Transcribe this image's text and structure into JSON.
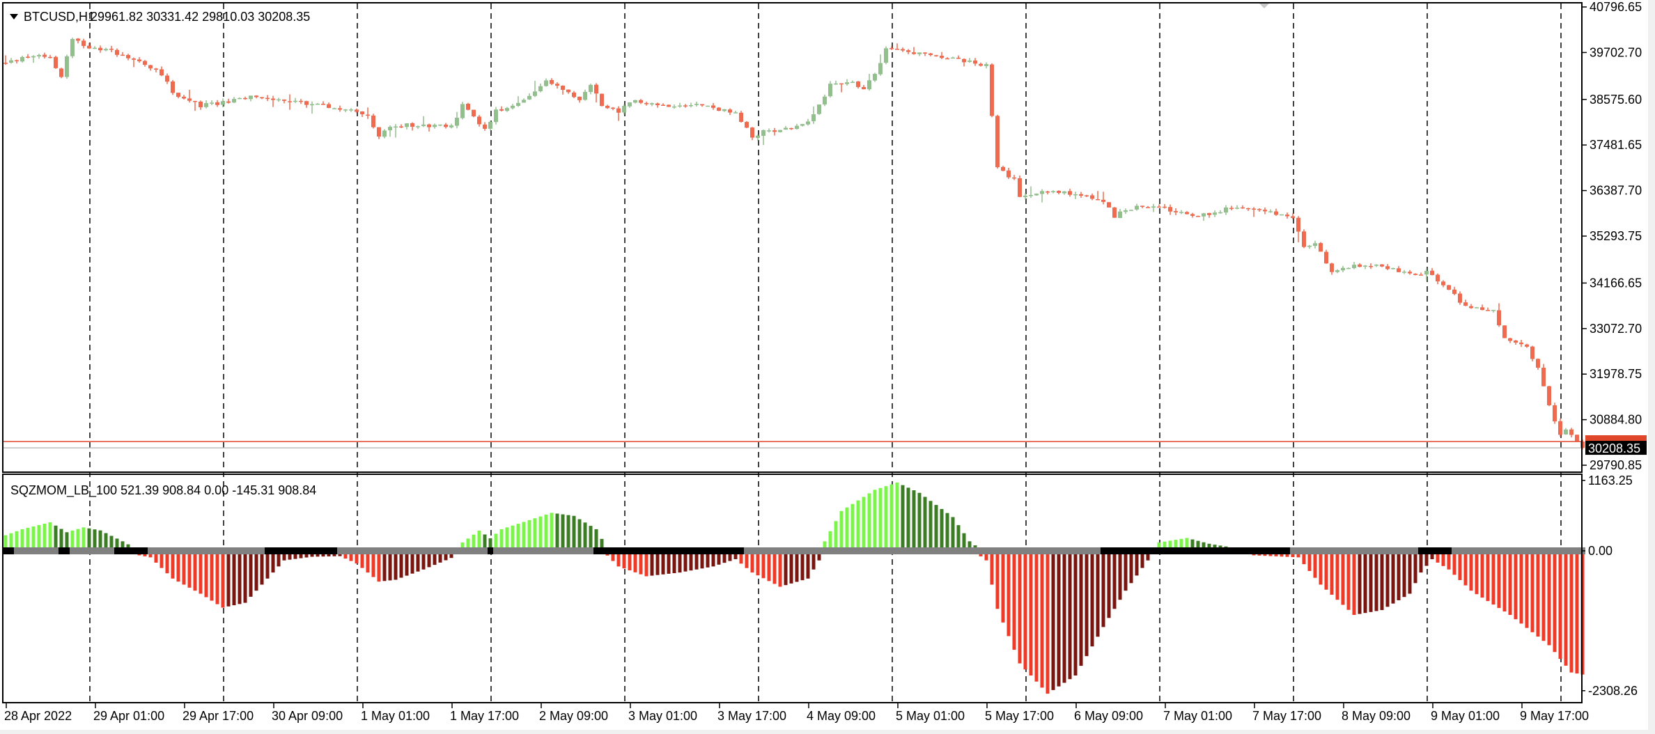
{
  "header": {
    "symbol": "BTCUSD,H1",
    "ohlc": "29961.82 30331.42 29810.03 30208.35"
  },
  "indicator": {
    "label": "SQZMOM_LB_100 521.39 908.84 0.00 -145.31 908.84"
  },
  "price_axis": {
    "labels": [
      "40796.65",
      "39702.70",
      "38575.60",
      "37481.65",
      "36387.70",
      "35293.75",
      "34166.65",
      "33072.70",
      "31978.75",
      "30884.80",
      "29790.85"
    ],
    "current_price": "30208.35",
    "ask_price_level": 30360
  },
  "indicator_axis": {
    "labels": [
      "1163.25",
      "0.00",
      "-2308.26"
    ],
    "values": [
      1163.25,
      0,
      -2308.26
    ]
  },
  "time_axis": {
    "labels": [
      "28 Apr 2022",
      "29 Apr 01:00",
      "29 Apr 17:00",
      "30 Apr 09:00",
      "1 May 01:00",
      "1 May 17:00",
      "2 May 09:00",
      "3 May 01:00",
      "3 May 17:00",
      "4 May 09:00",
      "5 May 01:00",
      "5 May 17:00",
      "6 May 09:00",
      "7 May 01:00",
      "7 May 17:00",
      "8 May 09:00",
      "9 May 01:00",
      "9 May 17:00"
    ]
  },
  "colors": {
    "bull": "#93bf8e",
    "bear": "#ef6a4f",
    "mom_up_pos": "#7cf54a",
    "mom_down_pos": "#3a7d22",
    "mom_down_neg": "#ef3a28",
    "mom_up_neg": "#7a140e",
    "squeeze_on": "#000000",
    "squeeze_off": "#808080",
    "ask_line": "#e0462a",
    "bid_line": "#bdbdbd"
  },
  "chart_data": {
    "type": "candlestick",
    "timeframe": "H1",
    "close_path": [
      [
        0,
        39440
      ],
      [
        5,
        39645
      ],
      [
        8,
        39570
      ],
      [
        10,
        39100
      ],
      [
        12,
        40070
      ],
      [
        15,
        39820
      ],
      [
        19,
        39740
      ],
      [
        25,
        39440
      ],
      [
        28,
        39190
      ],
      [
        30,
        38730
      ],
      [
        35,
        38430
      ],
      [
        38,
        38480
      ],
      [
        44,
        38630
      ],
      [
        49,
        38580
      ],
      [
        57,
        38430
      ],
      [
        63,
        38300
      ],
      [
        65,
        38220
      ],
      [
        67,
        37670
      ],
      [
        69,
        37920
      ],
      [
        72,
        37970
      ],
      [
        80,
        37920
      ],
      [
        82,
        38430
      ],
      [
        84,
        38170
      ],
      [
        86,
        37840
      ],
      [
        88,
        38300
      ],
      [
        93,
        38550
      ],
      [
        97,
        38990
      ],
      [
        100,
        38810
      ],
      [
        103,
        38555
      ],
      [
        105,
        38935
      ],
      [
        107,
        38430
      ],
      [
        110,
        38300
      ],
      [
        113,
        38555
      ],
      [
        118,
        38430
      ],
      [
        123,
        38480
      ],
      [
        127,
        38380
      ],
      [
        131,
        38225
      ],
      [
        134,
        37670
      ],
      [
        136,
        37800
      ],
      [
        142,
        37920
      ],
      [
        145,
        38175
      ],
      [
        148,
        38935
      ],
      [
        152,
        38990
      ],
      [
        154,
        38810
      ],
      [
        157,
        39440
      ],
      [
        158,
        39820
      ],
      [
        160,
        39745
      ],
      [
        165,
        39645
      ],
      [
        171,
        39520
      ],
      [
        176,
        39390
      ],
      [
        177,
        38175
      ],
      [
        178,
        36906
      ],
      [
        181,
        36650
      ],
      [
        182,
        36270
      ],
      [
        185,
        36350
      ],
      [
        190,
        36350
      ],
      [
        193,
        36270
      ],
      [
        197,
        36145
      ],
      [
        199,
        35765
      ],
      [
        201,
        35945
      ],
      [
        205,
        36020
      ],
      [
        208,
        35945
      ],
      [
        214,
        35765
      ],
      [
        220,
        35970
      ],
      [
        226,
        35895
      ],
      [
        231,
        35765
      ],
      [
        233,
        35005
      ],
      [
        235,
        35130
      ],
      [
        238,
        34420
      ],
      [
        241,
        34550
      ],
      [
        246,
        34625
      ],
      [
        250,
        34445
      ],
      [
        253,
        34320
      ],
      [
        255,
        34445
      ],
      [
        258,
        34115
      ],
      [
        262,
        33610
      ],
      [
        267,
        33480
      ],
      [
        269,
        32850
      ],
      [
        273,
        32595
      ],
      [
        275,
        32090
      ],
      [
        277,
        31205
      ],
      [
        279,
        30565
      ],
      [
        280,
        30690
      ],
      [
        282,
        30315
      ],
      [
        283,
        30208.35
      ]
    ],
    "momentum_path": [
      [
        0,
        200
      ],
      [
        3,
        300
      ],
      [
        8,
        414
      ],
      [
        11,
        250
      ],
      [
        14,
        330
      ],
      [
        17,
        280
      ],
      [
        21,
        100
      ],
      [
        23,
        0
      ],
      [
        26,
        -50
      ],
      [
        30,
        -400
      ],
      [
        35,
        -650
      ],
      [
        39,
        -880
      ],
      [
        43,
        -800
      ],
      [
        47,
        -400
      ],
      [
        50,
        -100
      ],
      [
        55,
        -40
      ],
      [
        60,
        -30
      ],
      [
        63,
        -150
      ],
      [
        67,
        -450
      ],
      [
        70,
        -420
      ],
      [
        75,
        -250
      ],
      [
        80,
        -60
      ],
      [
        82,
        80
      ],
      [
        85,
        276
      ],
      [
        87,
        150
      ],
      [
        89,
        300
      ],
      [
        94,
        450
      ],
      [
        98,
        570
      ],
      [
        102,
        520
      ],
      [
        106,
        300
      ],
      [
        108,
        -20
      ],
      [
        110,
        -200
      ],
      [
        115,
        -362
      ],
      [
        121,
        -300
      ],
      [
        127,
        -200
      ],
      [
        131,
        -80
      ],
      [
        134,
        -300
      ],
      [
        139,
        -535
      ],
      [
        144,
        -400
      ],
      [
        146,
        -100
      ],
      [
        147,
        100
      ],
      [
        150,
        600
      ],
      [
        156,
        950
      ],
      [
        160,
        1070
      ],
      [
        164,
        900
      ],
      [
        170,
        500
      ],
      [
        173,
        100
      ],
      [
        176,
        -100
      ],
      [
        178,
        -900
      ],
      [
        182,
        -1800
      ],
      [
        187,
        -2300
      ],
      [
        192,
        -2000
      ],
      [
        197,
        -1200
      ],
      [
        201,
        -600
      ],
      [
        205,
        -100
      ],
      [
        207,
        80
      ],
      [
        212,
        155
      ],
      [
        216,
        60
      ],
      [
        220,
        0
      ],
      [
        232,
        -50
      ],
      [
        236,
        -500
      ],
      [
        242,
        -1000
      ],
      [
        247,
        -920
      ],
      [
        252,
        -650
      ],
      [
        254,
        -300
      ],
      [
        256,
        -80
      ],
      [
        259,
        -250
      ],
      [
        263,
        -600
      ],
      [
        270,
        -1000
      ],
      [
        277,
        -1500
      ],
      [
        281,
        -1950
      ],
      [
        283,
        -1984
      ]
    ],
    "squeeze_segments": [
      [
        0,
        1,
        "on"
      ],
      [
        2,
        10,
        "off"
      ],
      [
        10,
        11,
        "on"
      ],
      [
        12,
        19,
        "off"
      ],
      [
        20,
        25,
        "on"
      ],
      [
        26,
        46,
        "off"
      ],
      [
        47,
        60,
        "on"
      ],
      [
        60,
        86,
        "off"
      ],
      [
        87,
        88,
        "on"
      ],
      [
        88,
        105,
        "off"
      ],
      [
        106,
        132,
        "on"
      ],
      [
        133,
        175,
        "off"
      ],
      [
        176,
        196,
        "off"
      ],
      [
        197,
        230,
        "on"
      ],
      [
        231,
        253,
        "off"
      ],
      [
        254,
        260,
        "on"
      ],
      [
        260,
        283,
        "off"
      ]
    ]
  }
}
